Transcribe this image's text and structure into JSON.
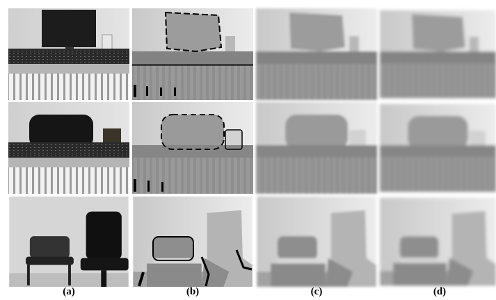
{
  "figure": {
    "panel_labels": [
      "(a)",
      "(b)",
      "(c)",
      "(d)"
    ]
  }
}
